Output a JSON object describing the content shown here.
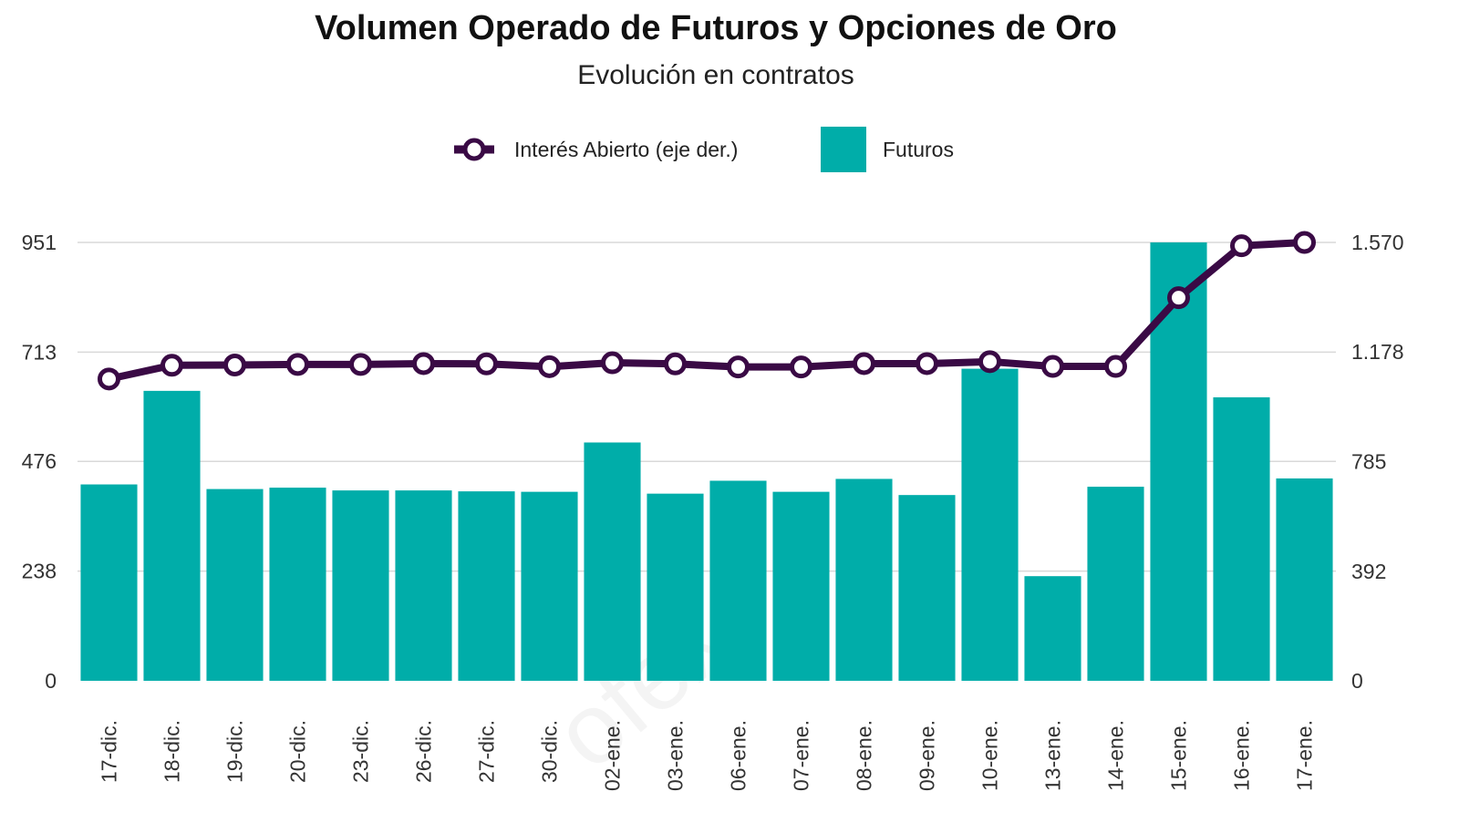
{
  "chart_data": {
    "type": "bar",
    "title": "Volumen Operado de Futuros y Opciones de Oro",
    "subtitle": "Evolución en contratos",
    "categories": [
      "17-dic.",
      "18-dic.",
      "19-dic.",
      "20-dic.",
      "23-dic.",
      "26-dic.",
      "27-dic.",
      "30-dic.",
      "02-ene.",
      "03-ene.",
      "06-ene.",
      "07-ene.",
      "08-ene.",
      "09-ene.",
      "10-ene.",
      "13-ene.",
      "14-ene.",
      "15-ene.",
      "16-ene.",
      "17-ene."
    ],
    "series": [
      {
        "name": "Futuros",
        "type": "bar",
        "axis": "left",
        "color": "#00ADA9",
        "values": [
          426,
          629,
          416,
          419,
          413,
          413,
          411,
          410,
          517,
          406,
          434,
          410,
          438,
          403,
          677,
          227,
          421,
          951,
          615,
          439
        ]
      },
      {
        "name": "Interés Abierto (eje der.)",
        "type": "line",
        "axis": "right",
        "color": "#3A0A45",
        "values": [
          1081,
          1130,
          1131,
          1133,
          1133,
          1136,
          1135,
          1125,
          1139,
          1135,
          1124,
          1124,
          1136,
          1136,
          1143,
          1126,
          1126,
          1372,
          1558,
          1570
        ]
      }
    ],
    "y_left": {
      "ylim": [
        0,
        951
      ],
      "ticks": [
        0,
        238,
        476,
        713,
        951
      ],
      "tick_labels": [
        "0",
        "238",
        "476",
        "713",
        "951"
      ]
    },
    "y_right": {
      "ylim": [
        0,
        1570
      ],
      "ticks": [
        0,
        392,
        785,
        1178,
        1570
      ],
      "tick_labels": [
        "0",
        "392",
        "785",
        "1.178",
        "1.570"
      ]
    },
    "grid": true,
    "legend": "top-center",
    "xlabel": "",
    "ylabel": ""
  },
  "legend": {
    "line_label": "Interés Abierto (eje der.)",
    "bar_label": "Futuros"
  },
  "watermark": "Rofex"
}
